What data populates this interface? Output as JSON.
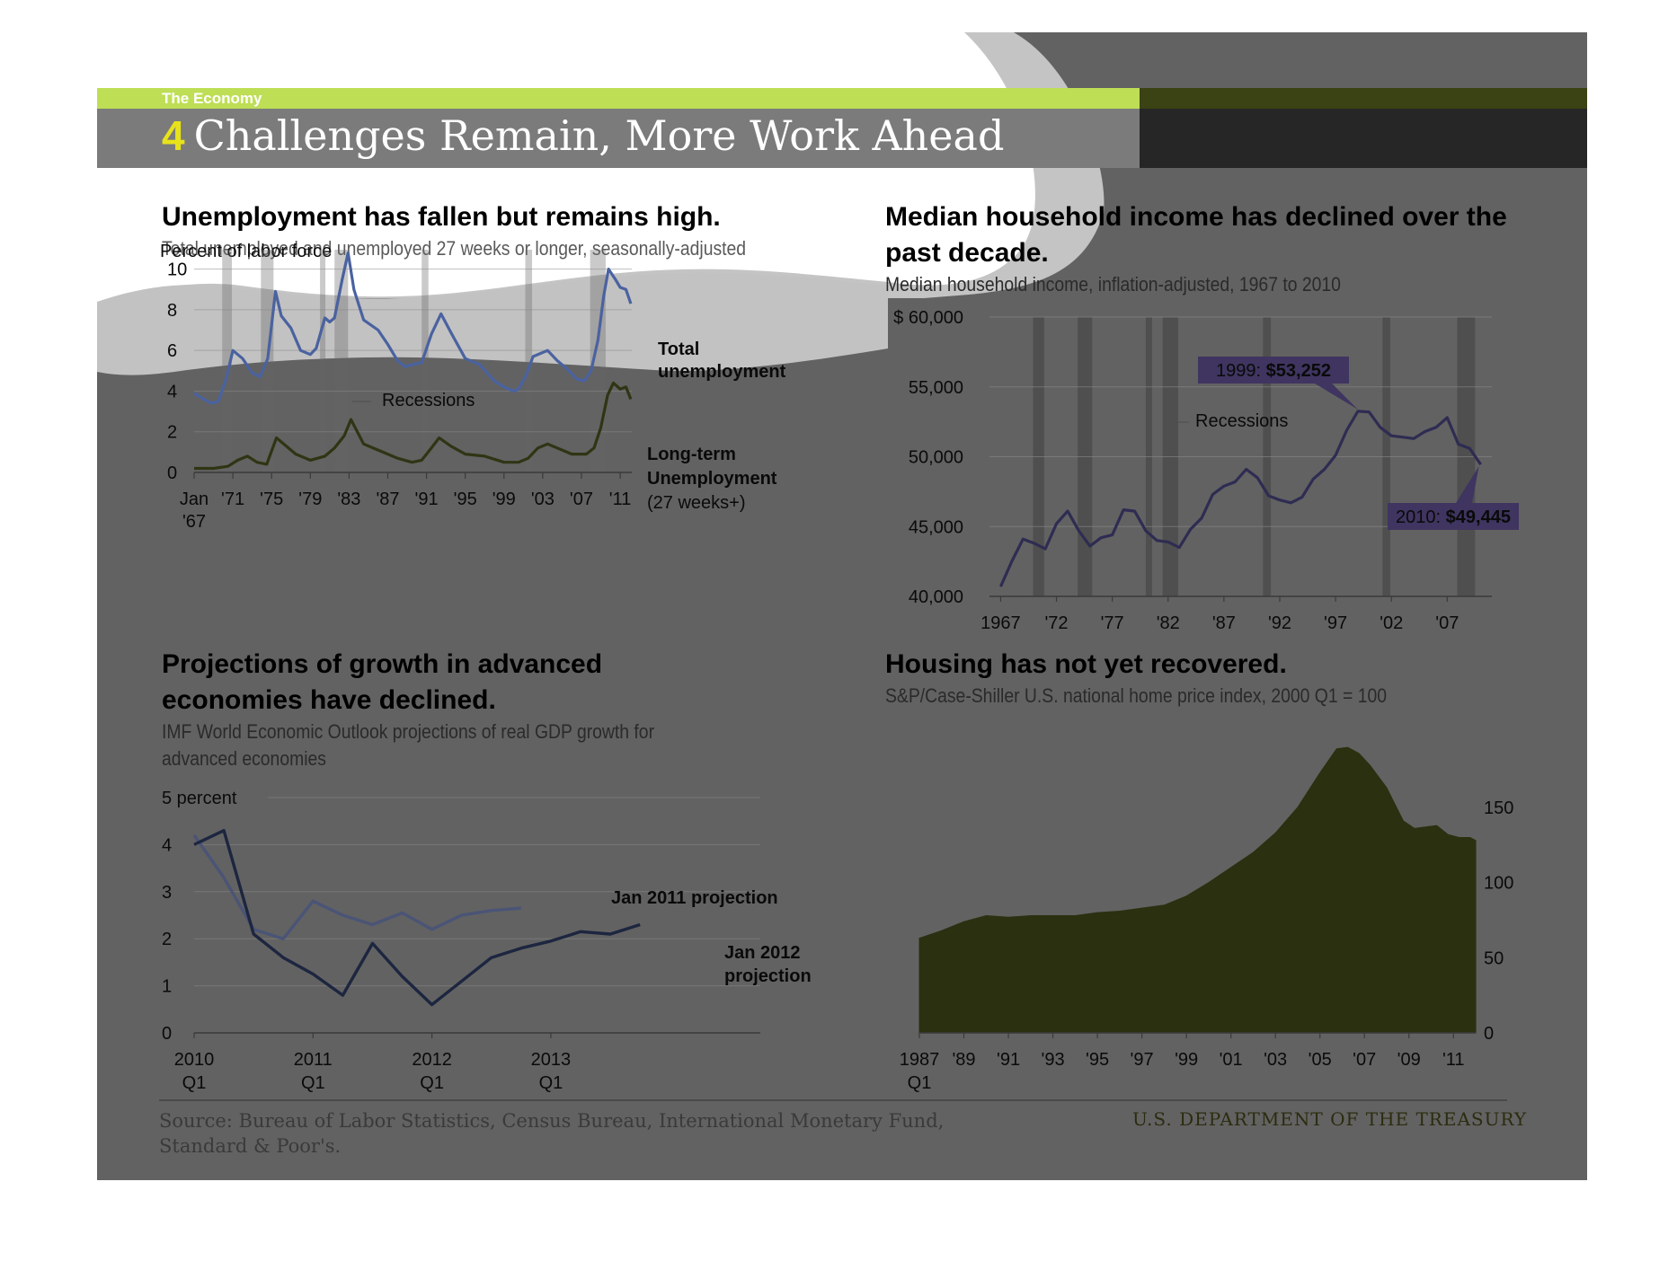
{
  "header": {
    "section": "The Economy",
    "number": "4",
    "title": "Challenges Remain, More Work Ahead"
  },
  "colors": {
    "green_band": "#bede55",
    "title_band": "#7b7b7b",
    "total_unemployment": "#4a62a0",
    "long_term_unemployment": "#2f3514",
    "income_line": "#2e2c52",
    "income_callout": "#3f3560",
    "proj_2011": "#4a5476",
    "proj_2012": "#1d2640",
    "housing_area": "#2b3010"
  },
  "footer": {
    "source": "Source: Bureau of Labor Statistics, Census Bureau, International Monetary Fund, Standard & Poor's.",
    "credit": "U.S. DEPARTMENT OF THE TREASURY"
  },
  "chart_data": [
    {
      "type": "line",
      "title": "Unemployment has fallen but remains high.",
      "subtitle": "Total unemployed and unemployed 27 weeks or longer, seasonally-adjusted",
      "ylabel": "Percent of labor force",
      "ylim": [
        0,
        11
      ],
      "yticks": [
        0,
        2,
        4,
        6,
        8,
        10
      ],
      "xlim": [
        1967,
        2012.2
      ],
      "xticks": [
        {
          "v": 1967,
          "label": "Jan",
          "label2": "'67"
        },
        {
          "v": 1971,
          "label": "'71"
        },
        {
          "v": 1975,
          "label": "'75"
        },
        {
          "v": 1979,
          "label": "'79"
        },
        {
          "v": 1983,
          "label": "'83"
        },
        {
          "v": 1987,
          "label": "'87"
        },
        {
          "v": 1991,
          "label": "'91"
        },
        {
          "v": 1995,
          "label": "'95"
        },
        {
          "v": 1999,
          "label": "'99"
        },
        {
          "v": 2003,
          "label": "'03"
        },
        {
          "v": 2007,
          "label": "'07"
        },
        {
          "v": 2011,
          "label": "'11"
        }
      ],
      "recessions": [
        [
          1969.9,
          1970.9
        ],
        [
          1973.9,
          1975.2
        ],
        [
          1980.0,
          1980.5
        ],
        [
          1981.5,
          1982.9
        ],
        [
          1990.5,
          1991.2
        ],
        [
          2001.2,
          2001.9
        ],
        [
          2007.9,
          2009.5
        ]
      ],
      "recession_label": "Recessions",
      "series": [
        {
          "name": "Total unemployment",
          "x": [
            1967,
            1968,
            1968.8,
            1969.5,
            1970.3,
            1971,
            1972,
            1973,
            1973.8,
            1974.6,
            1975.4,
            1976,
            1977,
            1978,
            1979,
            1979.6,
            1980.5,
            1981,
            1981.5,
            1982.3,
            1982.9,
            1983.5,
            1984.5,
            1986,
            1987,
            1988,
            1988.8,
            1989.5,
            1990.5,
            1991.5,
            1992.5,
            1993.5,
            1995,
            1996.5,
            1998,
            1999,
            2000,
            2000.5,
            2001.3,
            2002,
            2003.5,
            2004.5,
            2005.5,
            2006.5,
            2007.3,
            2008,
            2008.7,
            2009.3,
            2009.8,
            2010.5,
            2011,
            2011.6,
            2012.1
          ],
          "values": [
            3.9,
            3.6,
            3.4,
            3.5,
            4.6,
            6.0,
            5.6,
            4.9,
            4.7,
            5.6,
            8.9,
            7.7,
            7.1,
            6.0,
            5.8,
            6.1,
            7.6,
            7.4,
            7.6,
            9.5,
            10.8,
            9.0,
            7.5,
            7.0,
            6.3,
            5.5,
            5.2,
            5.3,
            5.4,
            6.8,
            7.8,
            6.9,
            5.6,
            5.3,
            4.5,
            4.2,
            4.0,
            4.1,
            4.8,
            5.7,
            6.0,
            5.5,
            5.1,
            4.6,
            4.5,
            5.0,
            6.5,
            8.7,
            10.0,
            9.5,
            9.1,
            9.0,
            8.3
          ]
        },
        {
          "name": "Long-term Unemployment (27 weeks+)",
          "x": [
            1967,
            1969,
            1970.5,
            1971.5,
            1972.5,
            1973.5,
            1974.5,
            1975.5,
            1976.5,
            1977.5,
            1979,
            1980.5,
            1981.5,
            1982.5,
            1983.2,
            1984.5,
            1986,
            1988,
            1989.5,
            1990.5,
            1991.5,
            1992.3,
            1993.5,
            1995,
            1997,
            1999,
            2000.5,
            2001.5,
            2002.5,
            2003.5,
            2004.5,
            2006,
            2007.5,
            2008.3,
            2009,
            2009.7,
            2010.3,
            2011,
            2011.6,
            2012.1
          ],
          "values": [
            0.2,
            0.2,
            0.3,
            0.6,
            0.8,
            0.5,
            0.4,
            1.7,
            1.3,
            0.9,
            0.6,
            0.8,
            1.2,
            1.8,
            2.6,
            1.4,
            1.1,
            0.7,
            0.5,
            0.6,
            1.2,
            1.7,
            1.3,
            0.9,
            0.8,
            0.5,
            0.5,
            0.7,
            1.2,
            1.4,
            1.2,
            0.9,
            0.9,
            1.2,
            2.2,
            3.8,
            4.4,
            4.1,
            4.2,
            3.6
          ]
        }
      ],
      "legend_total_1": "Total",
      "legend_total_2": "unemployment",
      "legend_lt_1": "Long-term",
      "legend_lt_2": "Unemployment",
      "legend_lt_3": "(27 weeks+)"
    },
    {
      "type": "line",
      "title": "Median household income has declined over the past decade.",
      "subtitle": "Median household income, inflation-adjusted, 1967 to 2010",
      "ylim": [
        40000,
        60000
      ],
      "yticks": [
        {
          "v": 40000,
          "label": "40,000"
        },
        {
          "v": 45000,
          "label": "45,000"
        },
        {
          "v": 50000,
          "label": "50,000"
        },
        {
          "v": 55000,
          "label": "55,000"
        },
        {
          "v": 60000,
          "label": "$ 60,000"
        }
      ],
      "xlim": [
        1966,
        2011
      ],
      "xticks": [
        {
          "v": 1967,
          "label": "1967"
        },
        {
          "v": 1972,
          "label": "'72"
        },
        {
          "v": 1977,
          "label": "'77"
        },
        {
          "v": 1982,
          "label": "'82"
        },
        {
          "v": 1987,
          "label": "'87"
        },
        {
          "v": 1992,
          "label": "'92"
        },
        {
          "v": 1997,
          "label": "'97"
        },
        {
          "v": 2002,
          "label": "'02"
        },
        {
          "v": 2007,
          "label": "'07"
        }
      ],
      "recessions": [
        [
          1969.9,
          1970.9
        ],
        [
          1973.9,
          1975.2
        ],
        [
          1980.0,
          1980.5
        ],
        [
          1981.5,
          1982.9
        ],
        [
          1990.5,
          1991.2
        ],
        [
          2001.2,
          2001.9
        ],
        [
          2007.9,
          2009.5
        ]
      ],
      "recession_label": "Recessions",
      "x": [
        1967,
        1968,
        1969,
        1970,
        1971,
        1972,
        1973,
        1974,
        1975,
        1976,
        1977,
        1978,
        1979,
        1980,
        1981,
        1982,
        1983,
        1984,
        1985,
        1986,
        1987,
        1988,
        1989,
        1990,
        1991,
        1992,
        1993,
        1994,
        1995,
        1996,
        1997,
        1998,
        1999,
        2000,
        2001,
        2002,
        2003,
        2004,
        2005,
        2006,
        2007,
        2008,
        2009,
        2010
      ],
      "values": [
        40700,
        42500,
        44100,
        43800,
        43400,
        45200,
        46100,
        44700,
        43600,
        44200,
        44400,
        46200,
        46100,
        44700,
        44000,
        43900,
        43500,
        44800,
        45600,
        47300,
        47900,
        48200,
        49100,
        48500,
        47200,
        46900,
        46700,
        47100,
        48400,
        49100,
        50100,
        51900,
        53252,
        53200,
        52100,
        51500,
        51400,
        51300,
        51800,
        52100,
        52800,
        50900,
        50600,
        49445
      ],
      "callouts": [
        {
          "label": "1999: ",
          "value": "$53,252"
        },
        {
          "label": "2010: ",
          "value": "$49,445"
        }
      ]
    },
    {
      "type": "line",
      "title": "Projections of growth in advanced economies have declined.",
      "subtitle": "IMF World Economic Outlook  projections of real GDP growth for advanced economies",
      "ylim": [
        0,
        5
      ],
      "yticks": [
        {
          "v": 0,
          "label": "0"
        },
        {
          "v": 1,
          "label": "1"
        },
        {
          "v": 2,
          "label": "2"
        },
        {
          "v": 3,
          "label": "3"
        },
        {
          "v": 4,
          "label": "4"
        },
        {
          "v": 5,
          "label": "5 percent"
        }
      ],
      "xlim": [
        2010,
        2013.9
      ],
      "xticks": [
        {
          "v": 2010,
          "label": "2010",
          "label2": "Q1"
        },
        {
          "v": 2011,
          "label": "2011",
          "label2": "Q1"
        },
        {
          "v": 2012,
          "label": "2012",
          "label2": "Q1"
        },
        {
          "v": 2013,
          "label": "2013",
          "label2": "Q1"
        }
      ],
      "series": [
        {
          "name": "Jan 2011 projection",
          "x": [
            2010,
            2010.25,
            2010.5,
            2010.75,
            2011,
            2011.25,
            2011.5,
            2011.75,
            2012,
            2012.25,
            2012.5,
            2012.75
          ],
          "values": [
            4.2,
            3.3,
            2.2,
            2.0,
            2.8,
            2.5,
            2.3,
            2.55,
            2.2,
            2.5,
            2.6,
            2.65
          ]
        },
        {
          "name": "Jan 2012 projection",
          "x": [
            2010,
            2010.25,
            2010.5,
            2010.75,
            2011,
            2011.25,
            2011.5,
            2011.75,
            2012,
            2012.25,
            2012.5,
            2012.75,
            2013,
            2013.25,
            2013.5,
            2013.75
          ],
          "values": [
            4.0,
            4.3,
            2.1,
            1.6,
            1.25,
            0.8,
            1.9,
            1.2,
            0.6,
            1.1,
            1.6,
            1.8,
            1.95,
            2.15,
            2.1,
            2.3
          ]
        }
      ],
      "legend_2011": "Jan 2011 projection",
      "legend_2012_1": "Jan 2012",
      "legend_2012_2": "projection"
    },
    {
      "type": "area",
      "title": "Housing has not yet recovered.",
      "subtitle": "S&P/Case-Shiller U.S. national home price index, 2000 Q1 = 100",
      "ylim": [
        0,
        200
      ],
      "yticks": [
        {
          "v": 0,
          "label": "0"
        },
        {
          "v": 50,
          "label": "50"
        },
        {
          "v": 100,
          "label": "100"
        },
        {
          "v": 150,
          "label": "150"
        }
      ],
      "xlim": [
        1987,
        2012
      ],
      "xticks": [
        {
          "v": 1987,
          "label": "1987",
          "label2": "Q1"
        },
        {
          "v": 1989,
          "label": "'89"
        },
        {
          "v": 1991,
          "label": "'91"
        },
        {
          "v": 1993,
          "label": "'93"
        },
        {
          "v": 1995,
          "label": "'95"
        },
        {
          "v": 1997,
          "label": "'97"
        },
        {
          "v": 1999,
          "label": "'99"
        },
        {
          "v": 2001,
          "label": "'01"
        },
        {
          "v": 2003,
          "label": "'03"
        },
        {
          "v": 2005,
          "label": "'05"
        },
        {
          "v": 2007,
          "label": "'07"
        },
        {
          "v": 2009,
          "label": "'09"
        },
        {
          "v": 2011,
          "label": "'11"
        }
      ],
      "x": [
        1987,
        1988,
        1989,
        1990,
        1991,
        1992,
        1993,
        1994,
        1995,
        1996,
        1997,
        1998,
        1999,
        2000,
        2001,
        2002,
        2003,
        2004,
        2005,
        2005.75,
        2006.25,
        2006.75,
        2007.25,
        2008,
        2008.75,
        2009.25,
        2009.75,
        2010.25,
        2010.75,
        2011.25,
        2011.75,
        2012
      ],
      "values": [
        63,
        68,
        74,
        78,
        77,
        78,
        78,
        78,
        80,
        81,
        83,
        85,
        91,
        100,
        110,
        120,
        133,
        150,
        173,
        189,
        190,
        186,
        178,
        163,
        141,
        136,
        137,
        138,
        132,
        130,
        130,
        128
      ]
    }
  ]
}
